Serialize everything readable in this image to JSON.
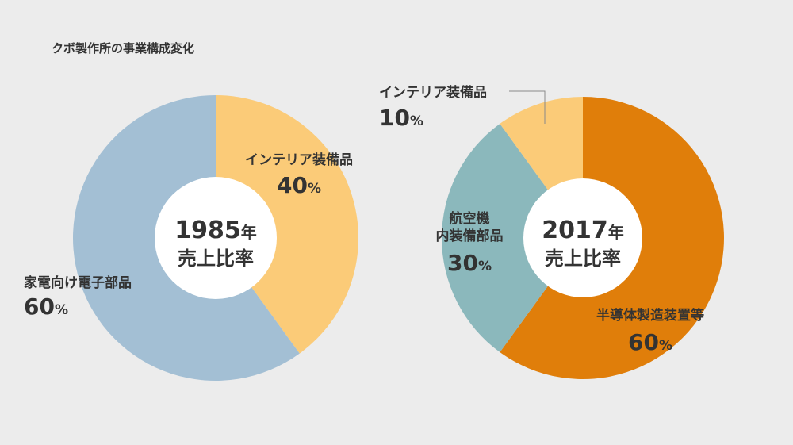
{
  "page": {
    "title": "クボ製作所の事業構成変化"
  },
  "colors": {
    "background": "#ececec",
    "text": "#333333",
    "center": "#ffffff",
    "leader_line": "#8a8a8a"
  },
  "chart_data": [
    {
      "type": "pie",
      "center_label": {
        "year": "1985年",
        "caption": "売上比率"
      },
      "slices": [
        {
          "label": "インテリア装備品",
          "value": 40,
          "value_text": "40%",
          "color": "#fbcb78"
        },
        {
          "label": "家電向け電子部品",
          "value": 60,
          "value_text": "60%",
          "color": "#a3bfd4"
        }
      ]
    },
    {
      "type": "pie",
      "center_label": {
        "year": "2017年",
        "caption": "売上比率"
      },
      "slices": [
        {
          "label": "半導体製造装置等",
          "value": 60,
          "value_text": "60%",
          "color": "#e07e0a"
        },
        {
          "label": "航空機\n内装備部品",
          "value": 30,
          "value_text": "30%",
          "color": "#8bb8bc"
        },
        {
          "label": "インテリア装備品",
          "value": 10,
          "value_text": "10%",
          "color": "#fbcb78"
        }
      ]
    }
  ]
}
